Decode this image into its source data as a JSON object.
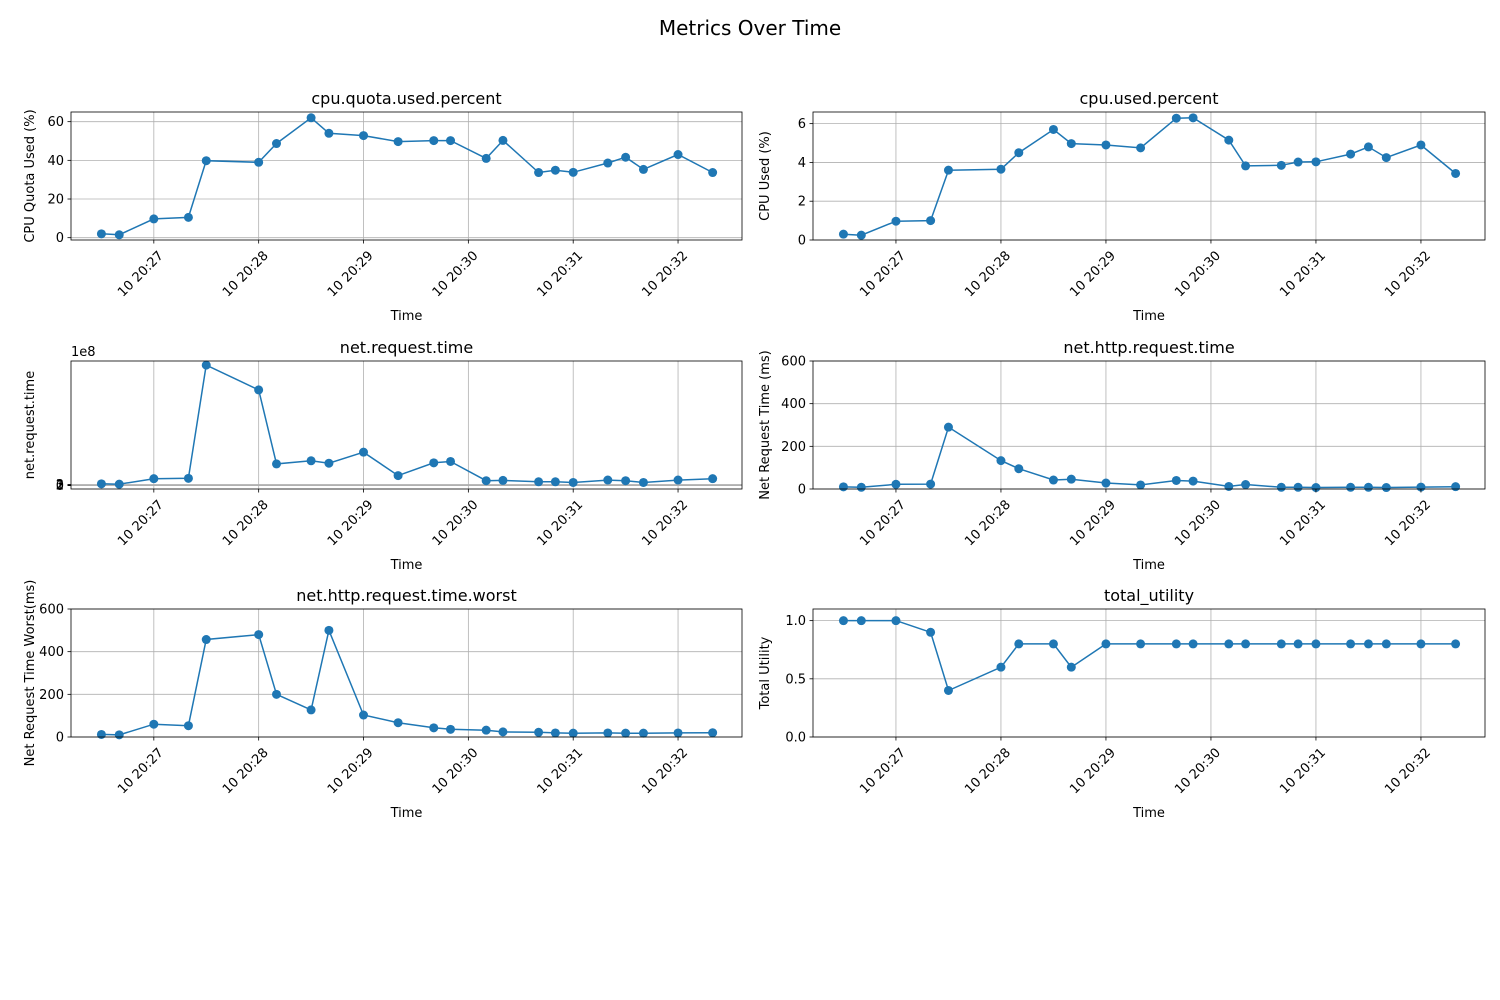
{
  "figure": {
    "title": "Metrics Over Time"
  },
  "chart_data": [
    {
      "type": "line",
      "title": "cpu.quota.used.percent",
      "xlabel": "Time",
      "ylabel": "CPU Quota Used (%)",
      "offset_text": "",
      "ylim": [
        -1.2,
        65
      ],
      "yticks": [
        0,
        20,
        40,
        60
      ],
      "x_tick_labels": [
        "10 20:27",
        "10 20:28",
        "10 20:29",
        "10 20:30",
        "10 20:31",
        "10 20:32"
      ],
      "xlim_minutes_from_2027": [
        -0.79,
        5.61
      ],
      "grid": true,
      "color": "#1f77b4",
      "x": [
        -0.5,
        -0.33,
        0.0,
        0.33,
        0.5,
        1.0,
        1.17,
        1.5,
        1.67,
        2.0,
        2.33,
        2.67,
        2.83,
        3.17,
        3.33,
        3.67,
        3.83,
        4.0,
        4.33,
        4.5,
        4.67,
        5.0,
        5.33
      ],
      "values": [
        2,
        1.5,
        9.7,
        10.5,
        39.8,
        39,
        48.7,
        62,
        54,
        52.8,
        49.7,
        50.2,
        50.2,
        41,
        50.3,
        33.7,
        34.9,
        33.8,
        38.6,
        41.6,
        35.3,
        43,
        33.7
      ]
    },
    {
      "type": "line",
      "title": "cpu.used.percent",
      "xlabel": "Time",
      "ylabel": "CPU Used (%)",
      "offset_text": "",
      "ylim": [
        0,
        6.6
      ],
      "yticks": [
        0,
        2,
        4,
        6
      ],
      "x_tick_labels": [
        "10 20:27",
        "10 20:28",
        "10 20:29",
        "10 20:30",
        "10 20:31",
        "10 20:32"
      ],
      "xlim_minutes_from_2027": [
        -0.79,
        5.61
      ],
      "grid": true,
      "color": "#1f77b4",
      "x": [
        -0.5,
        -0.33,
        0.0,
        0.33,
        0.5,
        1.0,
        1.17,
        1.5,
        1.67,
        2.0,
        2.33,
        2.67,
        2.83,
        3.17,
        3.33,
        3.67,
        3.83,
        4.0,
        4.33,
        4.5,
        4.67,
        5.0,
        5.33
      ],
      "values": [
        0.3,
        0.25,
        0.97,
        1.0,
        3.6,
        3.65,
        4.5,
        5.7,
        4.97,
        4.9,
        4.75,
        6.28,
        6.3,
        5.15,
        3.82,
        3.85,
        4.02,
        4.03,
        4.43,
        4.8,
        4.25,
        4.9,
        3.43
      ]
    },
    {
      "type": "line",
      "title": "net.request.time",
      "xlabel": "Time",
      "ylabel": "net.request.time",
      "offset_text": "1e8",
      "ylim": [
        -10,
        362
      ],
      "yticks": [
        0,
        1,
        2,
        3
      ],
      "x_tick_labels": [
        "10 20:27",
        "10 20:28",
        "10 20:29",
        "10 20:30",
        "10 20:31",
        "10 20:32"
      ],
      "xlim_minutes_from_2027": [
        -0.79,
        5.61
      ],
      "grid": true,
      "color": "#1f77b4",
      "value_unit": "1e6",
      "x": [
        -0.5,
        -0.33,
        0.0,
        0.33,
        0.5,
        1.0,
        1.17,
        1.5,
        1.67,
        2.0,
        2.33,
        2.67,
        2.83,
        3.17,
        3.33,
        3.67,
        3.83,
        4.0,
        4.33,
        4.5,
        4.67,
        5.0,
        5.33
      ],
      "values": [
        5,
        4,
        20,
        21,
        350,
        278,
        63,
        72,
        65,
        97,
        29,
        66,
        70,
        14,
        15,
        11,
        11,
        9,
        16,
        14,
        9,
        16,
        20
      ]
    },
    {
      "type": "line",
      "title": "net.http.request.time",
      "xlabel": "Time",
      "ylabel": "Net Request Time (ms)",
      "offset_text": "",
      "ylim": [
        0,
        600
      ],
      "yticks": [
        0,
        200,
        400,
        600
      ],
      "x_tick_labels": [
        "10 20:27",
        "10 20:28",
        "10 20:29",
        "10 20:30",
        "10 20:31",
        "10 20:32"
      ],
      "xlim_minutes_from_2027": [
        -0.79,
        5.61
      ],
      "grid": true,
      "color": "#1f77b4",
      "x": [
        -0.5,
        -0.33,
        0.0,
        0.33,
        0.5,
        1.0,
        1.17,
        1.5,
        1.67,
        2.0,
        2.33,
        2.67,
        2.83,
        3.17,
        3.33,
        3.67,
        3.83,
        4.0,
        4.33,
        4.5,
        4.67,
        5.0,
        5.33
      ],
      "values": [
        10,
        8,
        22,
        23,
        290,
        133,
        95,
        42,
        46,
        28,
        19,
        40,
        37,
        12,
        21,
        8,
        8,
        7,
        8,
        8,
        7,
        9,
        11
      ]
    },
    {
      "type": "line",
      "title": "net.http.request.time.worst",
      "xlabel": "Time",
      "ylabel": "Net Request Time Worst(ms)",
      "offset_text": "",
      "ylim": [
        0,
        600
      ],
      "yticks": [
        0,
        200,
        400,
        600
      ],
      "x_tick_labels": [
        "10 20:27",
        "10 20:28",
        "10 20:29",
        "10 20:30",
        "10 20:31",
        "10 20:32"
      ],
      "xlim_minutes_from_2027": [
        -0.79,
        5.61
      ],
      "grid": true,
      "color": "#1f77b4",
      "x": [
        -0.5,
        -0.33,
        0.0,
        0.33,
        0.5,
        1.0,
        1.17,
        1.5,
        1.67,
        2.0,
        2.33,
        2.67,
        2.83,
        3.17,
        3.33,
        3.67,
        3.83,
        4.0,
        4.33,
        4.5,
        4.67,
        5.0,
        5.33
      ],
      "values": [
        12,
        10,
        60,
        53,
        457,
        480,
        200,
        127,
        500,
        103,
        67,
        43,
        36,
        32,
        24,
        22,
        19,
        18,
        19,
        18,
        18,
        19,
        20
      ]
    },
    {
      "type": "line",
      "title": "total_utility",
      "xlabel": "Time",
      "ylabel": "Total Utility",
      "offset_text": "",
      "ylim": [
        0,
        1.1
      ],
      "yticks": [
        0.0,
        0.5,
        1.0
      ],
      "ytick_format": "1",
      "x_tick_labels": [
        "10 20:27",
        "10 20:28",
        "10 20:29",
        "10 20:30",
        "10 20:31",
        "10 20:32"
      ],
      "xlim_minutes_from_2027": [
        -0.79,
        5.61
      ],
      "grid": true,
      "color": "#1f77b4",
      "x": [
        -0.5,
        -0.33,
        0.0,
        0.33,
        0.5,
        1.0,
        1.17,
        1.5,
        1.67,
        2.0,
        2.33,
        2.67,
        2.83,
        3.17,
        3.33,
        3.67,
        3.83,
        4.0,
        4.33,
        4.5,
        4.67,
        5.0,
        5.33
      ],
      "values": [
        1.0,
        1.0,
        1.0,
        0.9,
        0.4,
        0.6,
        0.8,
        0.8,
        0.6,
        0.8,
        0.8,
        0.8,
        0.8,
        0.8,
        0.8,
        0.8,
        0.8,
        0.8,
        0.8,
        0.8,
        0.8,
        0.8,
        0.8
      ]
    }
  ]
}
